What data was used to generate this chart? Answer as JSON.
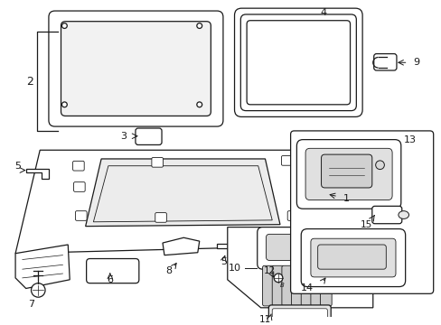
{
  "bg_color": "#ffffff",
  "line_color": "#1a1a1a",
  "lw": 0.9
}
